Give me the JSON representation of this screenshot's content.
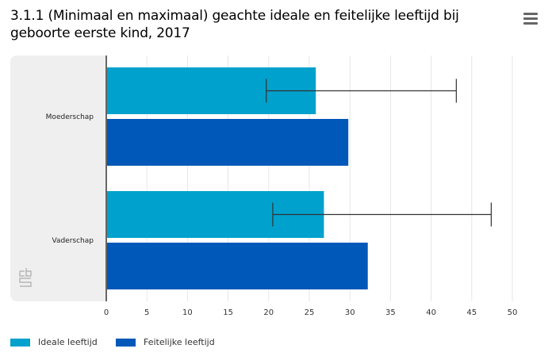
{
  "title": "3.1.1 (Minimaal en maximaal) geachte ideale en feitelijke leeftijd bij geboorte eerste kind, 2017",
  "menu_icon": "hamburger-menu-icon",
  "logo": "cbs",
  "colors": {
    "ideal": "#00a1cd",
    "actual": "#0058b8",
    "error": "#333333",
    "grid": "#e6e6e6",
    "axis": "#666666"
  },
  "chart_data": {
    "type": "bar",
    "orientation": "horizontal",
    "title": "3.1.1 (Minimaal en maximaal) geachte ideale en feitelijke leeftijd bij geboorte eerste kind, 2017",
    "categories": [
      "Moederschap",
      "Vaderschap"
    ],
    "series": [
      {
        "name": "Ideale leeftijd",
        "values": [
          25.8,
          26.8
        ],
        "error_min": [
          19.7,
          20.5
        ],
        "error_max": [
          43.1,
          47.4
        ]
      },
      {
        "name": "Feitelijke leeftijd",
        "values": [
          29.8,
          32.2
        ]
      }
    ],
    "xlim": [
      0,
      50
    ],
    "xticks": [
      "0",
      "5",
      "10",
      "15",
      "20",
      "25",
      "30",
      "35",
      "40",
      "45",
      "50"
    ],
    "grid": true,
    "legend": "bottom-left"
  }
}
